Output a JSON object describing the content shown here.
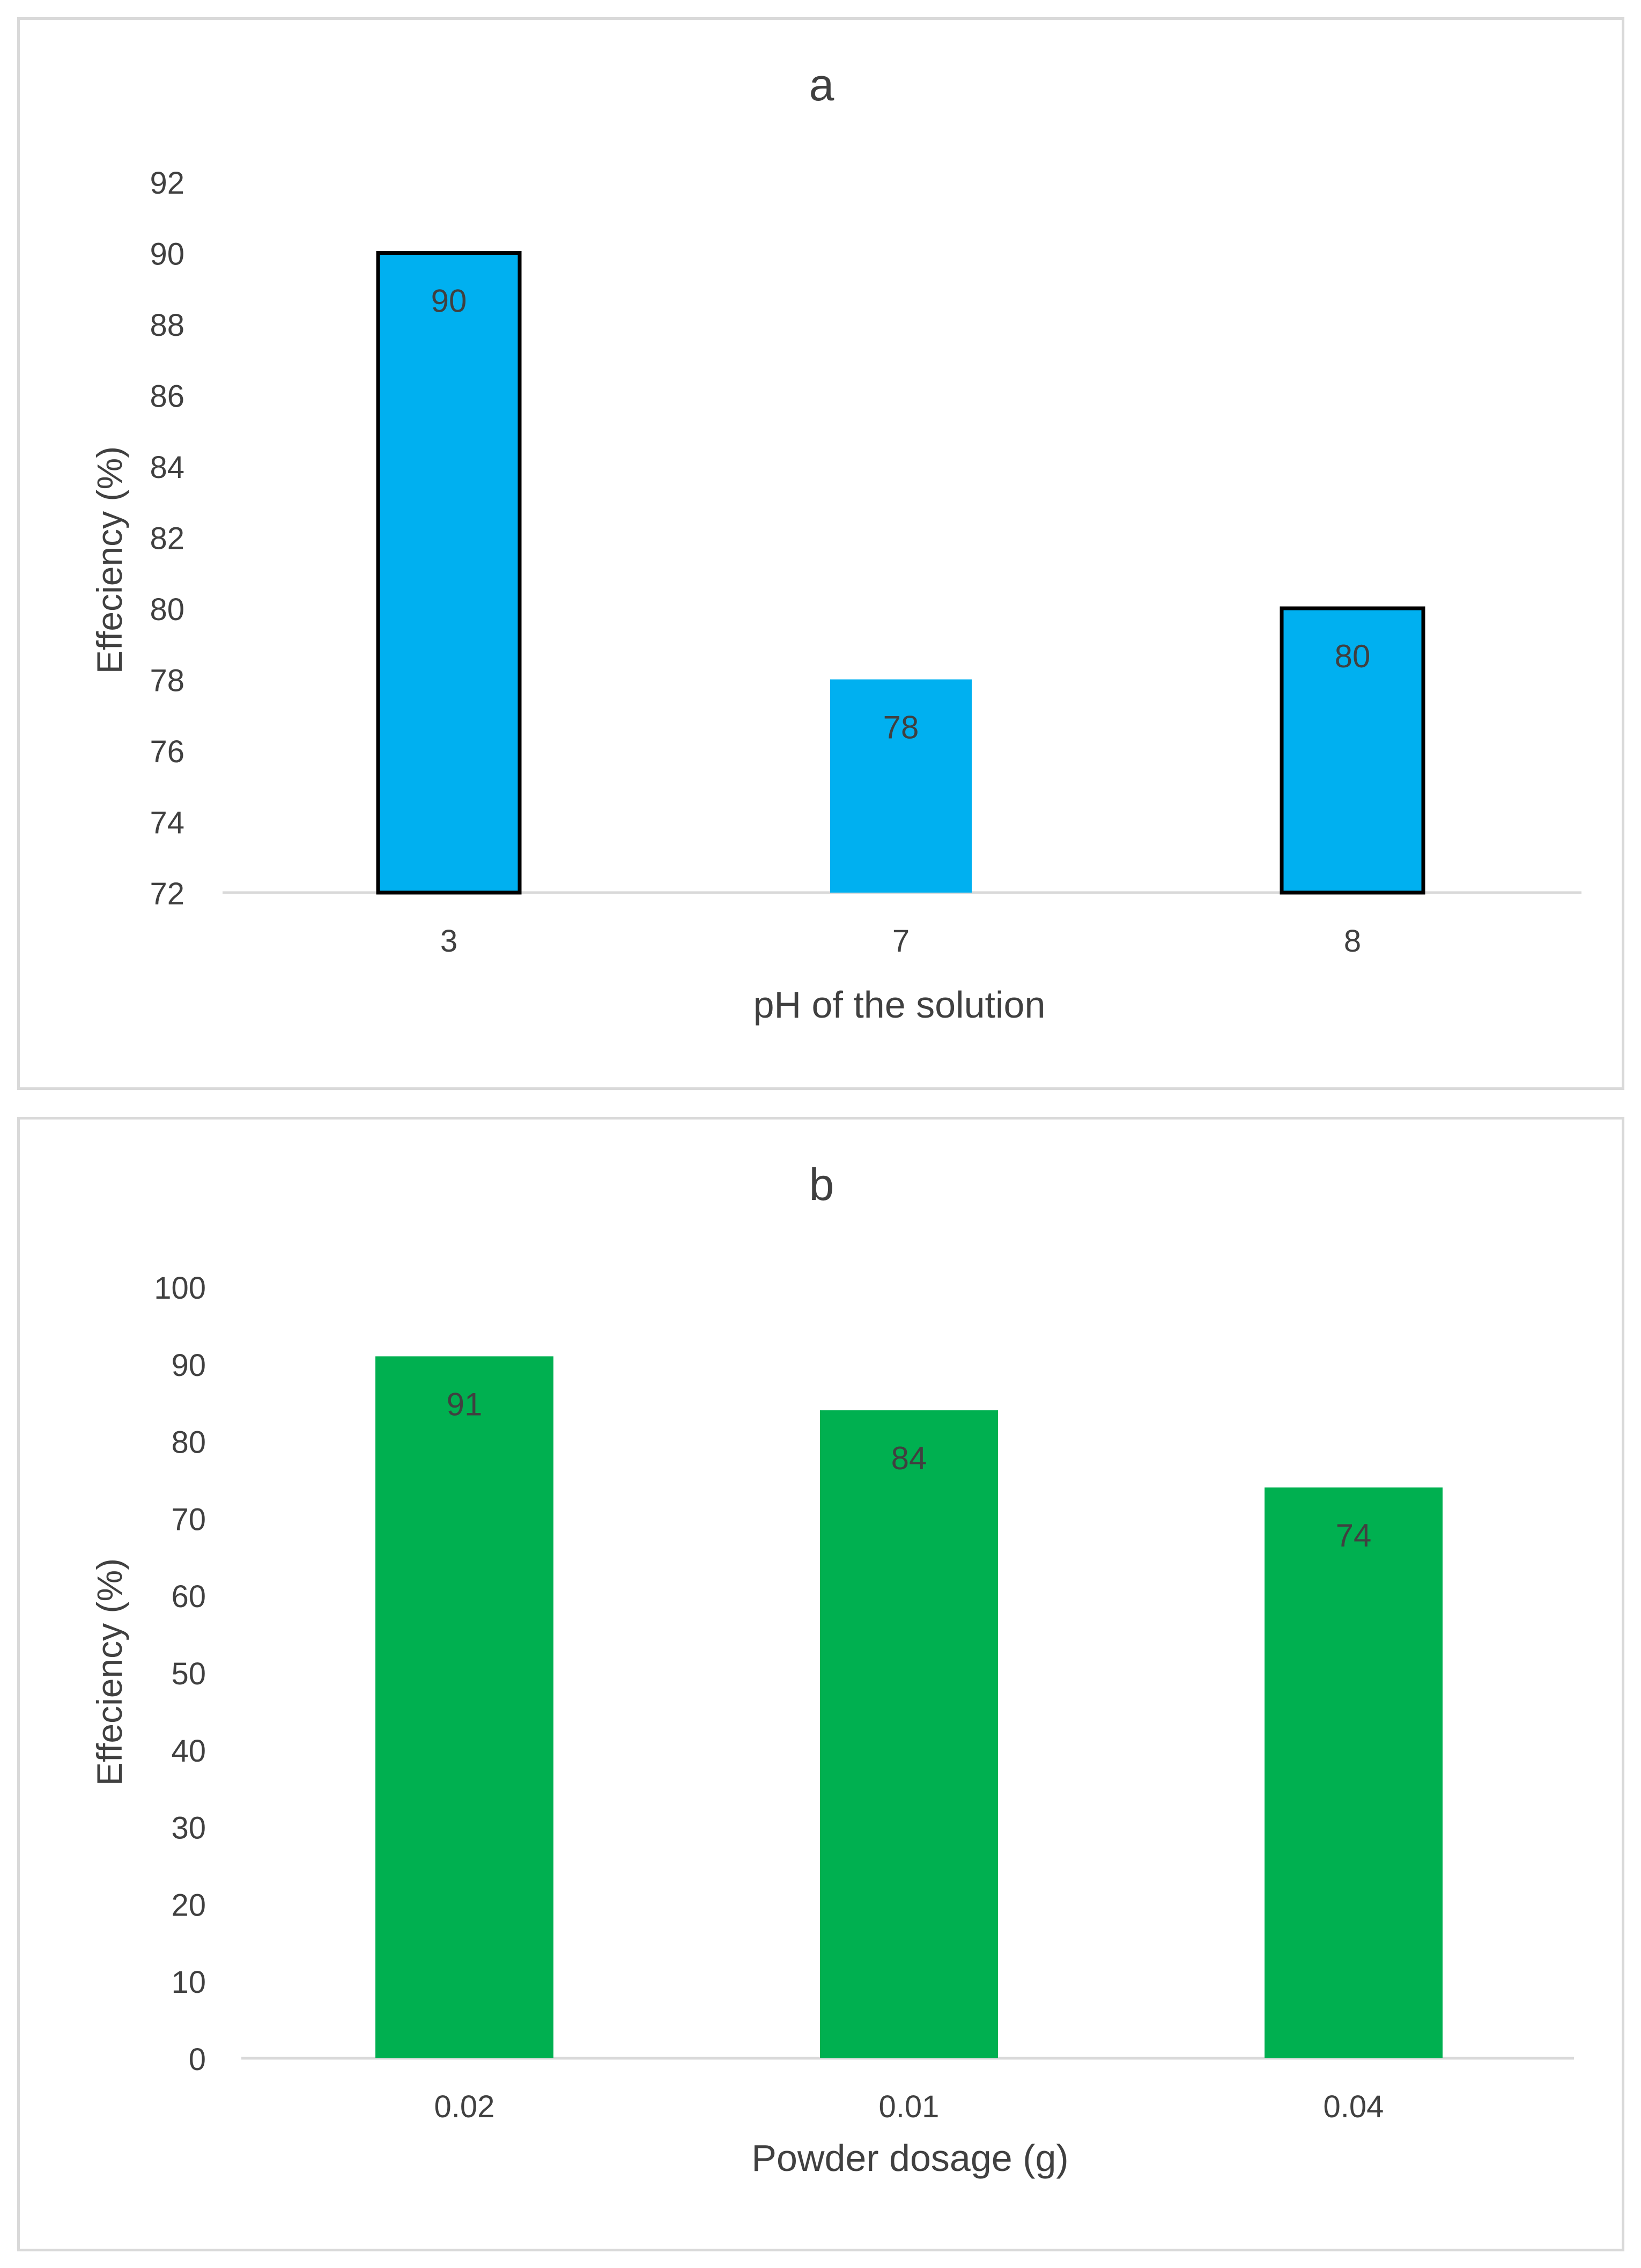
{
  "chart_data": [
    {
      "type": "bar",
      "title": "a",
      "xlabel": "pH of the solution",
      "ylabel": "Effeciency (%)",
      "categories": [
        "3",
        "7",
        "8"
      ],
      "values": [
        90,
        78,
        80
      ],
      "data_labels": [
        "90",
        "78",
        "80"
      ],
      "ylim": [
        72,
        92
      ],
      "yticks": [
        72,
        74,
        76,
        78,
        80,
        82,
        84,
        86,
        88,
        90,
        92
      ],
      "outlined": [
        true,
        false,
        true
      ],
      "grid": false,
      "legend": "none",
      "bar_color": "#00b0f0",
      "outline_color": "#000000"
    },
    {
      "type": "bar",
      "title": "b",
      "xlabel": "Powder dosage (g)",
      "ylabel": "Effeciency (%)",
      "categories": [
        "0.02",
        "0.01",
        "0.04"
      ],
      "values": [
        91,
        84,
        74
      ],
      "data_labels": [
        "91",
        "84",
        "74"
      ],
      "ylim": [
        0,
        100
      ],
      "yticks": [
        0,
        10,
        20,
        30,
        40,
        50,
        60,
        70,
        80,
        90,
        100
      ],
      "outlined": [
        false,
        false,
        false
      ],
      "grid": false,
      "legend": "none",
      "bar_color": "#00b050",
      "outline_color": "#000000"
    }
  ],
  "colors": {
    "text": "#404040",
    "axis": "#d9d9d9",
    "border": "#d9d9d9"
  }
}
